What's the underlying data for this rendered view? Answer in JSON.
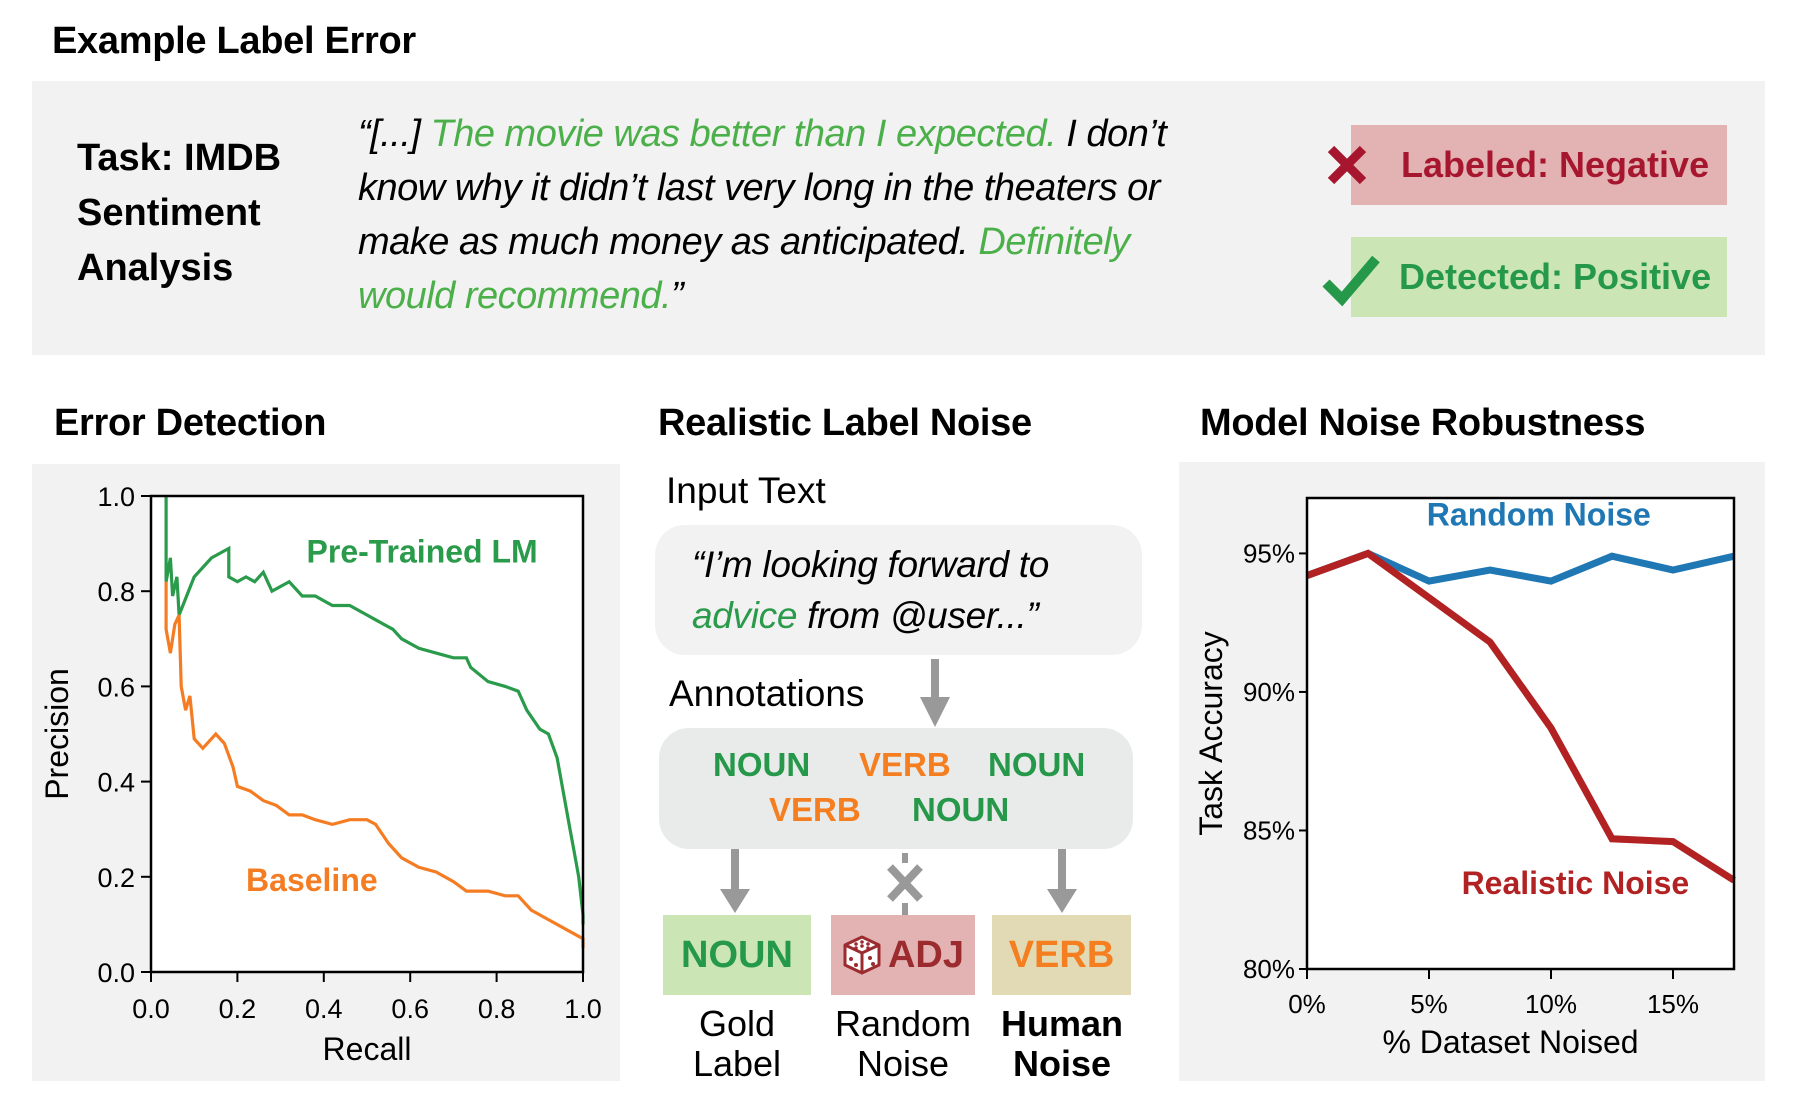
{
  "example": {
    "title": "Example Label Error",
    "task_lines": [
      "Task: IMDB",
      "Sentiment",
      "Analysis"
    ],
    "quote_segments": [
      [
        {
          "text": "“[...] ",
          "green": false
        },
        {
          "text": "The movie was better than I expected.",
          "green": true
        },
        {
          "text": " I don’t",
          "green": false
        }
      ],
      [
        {
          "text": "know why it didn’t last very long in the theaters or",
          "green": false
        }
      ],
      [
        {
          "text": "make as much money as anticipated. ",
          "green": false
        },
        {
          "text": "Definitely",
          "green": true
        }
      ],
      [
        {
          "text": "would recommend.",
          "green": true
        },
        {
          "text": "”",
          "green": false
        }
      ]
    ],
    "labeled": {
      "icon": "cross-icon",
      "text": "Labeled: Negative",
      "color": "#a6172f"
    },
    "detected": {
      "icon": "check-icon",
      "text": "Detected: Positive",
      "color": "#25984a"
    }
  },
  "sections": {
    "error_detection": "Error Detection",
    "label_noise": "Realistic Label Noise",
    "robustness": "Model Noise Robustness"
  },
  "noise_diagram": {
    "input_title": "Input Text",
    "input_line1": "“I’m looking forward to",
    "input_word_highlight": "advice",
    "input_line2_rest": " from @user...”",
    "annotations_title": "Annotations",
    "annotations": [
      {
        "label": "NOUN",
        "type": "noun"
      },
      {
        "label": "VERB",
        "type": "verb"
      },
      {
        "label": "NOUN",
        "type": "noun"
      },
      {
        "label": "VERB",
        "type": "verb"
      },
      {
        "label": "NOUN",
        "type": "noun"
      }
    ],
    "results": [
      {
        "label": "NOUN",
        "caption": [
          "Gold",
          "Label"
        ],
        "icon": null,
        "arrow": "down-arrow-icon"
      },
      {
        "label": "ADJ",
        "caption": [
          "Random",
          "Noise"
        ],
        "icon": "dice-icon",
        "arrow": "blocked-arrow-icon"
      },
      {
        "label": "VERB",
        "caption": [
          "Human",
          "Noise"
        ],
        "icon": null,
        "arrow": "down-arrow-icon"
      }
    ]
  },
  "chart_data": [
    {
      "type": "line",
      "title": "Error Detection",
      "xlabel": "Recall",
      "ylabel": "Precision",
      "xlim": [
        0,
        1
      ],
      "ylim": [
        0,
        1
      ],
      "xticks": [
        "0.0",
        "0.2",
        "0.4",
        "0.6",
        "0.8",
        "1.0"
      ],
      "yticks": [
        "0.0",
        "0.2",
        "0.4",
        "0.6",
        "0.8",
        "1.0"
      ],
      "grid": false,
      "series": [
        {
          "name": "Pre-Trained LM",
          "color": "#2a9a4b",
          "points": [
            [
              0.035,
              1.0
            ],
            [
              0.035,
              0.82
            ],
            [
              0.045,
              0.87
            ],
            [
              0.05,
              0.79
            ],
            [
              0.06,
              0.83
            ],
            [
              0.065,
              0.75
            ],
            [
              0.1,
              0.83
            ],
            [
              0.14,
              0.87
            ],
            [
              0.18,
              0.89
            ],
            [
              0.18,
              0.83
            ],
            [
              0.2,
              0.82
            ],
            [
              0.22,
              0.83
            ],
            [
              0.24,
              0.82
            ],
            [
              0.26,
              0.84
            ],
            [
              0.28,
              0.8
            ],
            [
              0.32,
              0.82
            ],
            [
              0.35,
              0.79
            ],
            [
              0.38,
              0.79
            ],
            [
              0.42,
              0.77
            ],
            [
              0.46,
              0.77
            ],
            [
              0.5,
              0.75
            ],
            [
              0.52,
              0.74
            ],
            [
              0.56,
              0.72
            ],
            [
              0.58,
              0.7
            ],
            [
              0.62,
              0.68
            ],
            [
              0.66,
              0.67
            ],
            [
              0.7,
              0.66
            ],
            [
              0.73,
              0.66
            ],
            [
              0.74,
              0.64
            ],
            [
              0.78,
              0.61
            ],
            [
              0.82,
              0.6
            ],
            [
              0.85,
              0.59
            ],
            [
              0.87,
              0.55
            ],
            [
              0.9,
              0.51
            ],
            [
              0.92,
              0.5
            ],
            [
              0.94,
              0.45
            ],
            [
              0.95,
              0.4
            ],
            [
              0.97,
              0.3
            ],
            [
              0.98,
              0.25
            ],
            [
              0.99,
              0.2
            ],
            [
              1.0,
              0.12
            ],
            [
              1.0,
              0.1
            ]
          ]
        },
        {
          "name": "Baseline",
          "color": "#f47d24",
          "points": [
            [
              0.035,
              0.82
            ],
            [
              0.035,
              0.72
            ],
            [
              0.045,
              0.67
            ],
            [
              0.055,
              0.73
            ],
            [
              0.065,
              0.75
            ],
            [
              0.07,
              0.6
            ],
            [
              0.08,
              0.55
            ],
            [
              0.09,
              0.58
            ],
            [
              0.1,
              0.49
            ],
            [
              0.12,
              0.47
            ],
            [
              0.15,
              0.5
            ],
            [
              0.17,
              0.48
            ],
            [
              0.19,
              0.43
            ],
            [
              0.2,
              0.39
            ],
            [
              0.23,
              0.38
            ],
            [
              0.26,
              0.36
            ],
            [
              0.29,
              0.35
            ],
            [
              0.32,
              0.33
            ],
            [
              0.35,
              0.33
            ],
            [
              0.38,
              0.32
            ],
            [
              0.42,
              0.31
            ],
            [
              0.46,
              0.32
            ],
            [
              0.5,
              0.32
            ],
            [
              0.52,
              0.31
            ],
            [
              0.55,
              0.27
            ],
            [
              0.58,
              0.24
            ],
            [
              0.62,
              0.22
            ],
            [
              0.66,
              0.21
            ],
            [
              0.7,
              0.19
            ],
            [
              0.73,
              0.17
            ],
            [
              0.78,
              0.17
            ],
            [
              0.82,
              0.16
            ],
            [
              0.85,
              0.16
            ],
            [
              0.88,
              0.13
            ],
            [
              0.92,
              0.11
            ],
            [
              0.96,
              0.09
            ],
            [
              1.0,
              0.07
            ],
            [
              1.0,
              0.05
            ]
          ]
        }
      ],
      "annotations": [
        {
          "text": "Pre-Trained LM",
          "x": 0.36,
          "y": 0.86,
          "color": "#2a9a4b"
        },
        {
          "text": "Baseline",
          "x": 0.22,
          "y": 0.17,
          "color": "#f47d24"
        }
      ]
    },
    {
      "type": "line",
      "title": "Model Noise Robustness",
      "xlabel": "% Dataset Noised",
      "ylabel": "Task Accuracy",
      "xlim": [
        0,
        17.5
      ],
      "ylim": [
        80,
        97
      ],
      "xticks": [
        {
          "v": 0,
          "label": "0%"
        },
        {
          "v": 5,
          "label": "5%"
        },
        {
          "v": 10,
          "label": "10%"
        },
        {
          "v": 15,
          "label": "15%"
        }
      ],
      "yticks": [
        {
          "v": 80,
          "label": "80%"
        },
        {
          "v": 85,
          "label": "85%"
        },
        {
          "v": 90,
          "label": "90%"
        },
        {
          "v": 95,
          "label": "95%"
        }
      ],
      "grid": false,
      "x": [
        0,
        2.5,
        5,
        7.5,
        10,
        12.5,
        15,
        17.5
      ],
      "series": [
        {
          "name": "Random Noise",
          "color": "#1f77b4",
          "values": [
            94.2,
            95.0,
            94.0,
            94.4,
            94.0,
            94.9,
            94.4,
            94.9
          ]
        },
        {
          "name": "Realistic Noise",
          "color": "#b22222",
          "values": [
            94.2,
            95.0,
            93.4,
            91.8,
            88.7,
            84.7,
            84.6,
            83.2
          ]
        }
      ],
      "annotations": [
        {
          "text": "Random Noise",
          "x": 9.5,
          "y": 96.0,
          "color": "#1f77b4"
        },
        {
          "text": "Realistic Noise",
          "x": 11.0,
          "y": 82.7,
          "color": "#b22222"
        }
      ]
    }
  ]
}
